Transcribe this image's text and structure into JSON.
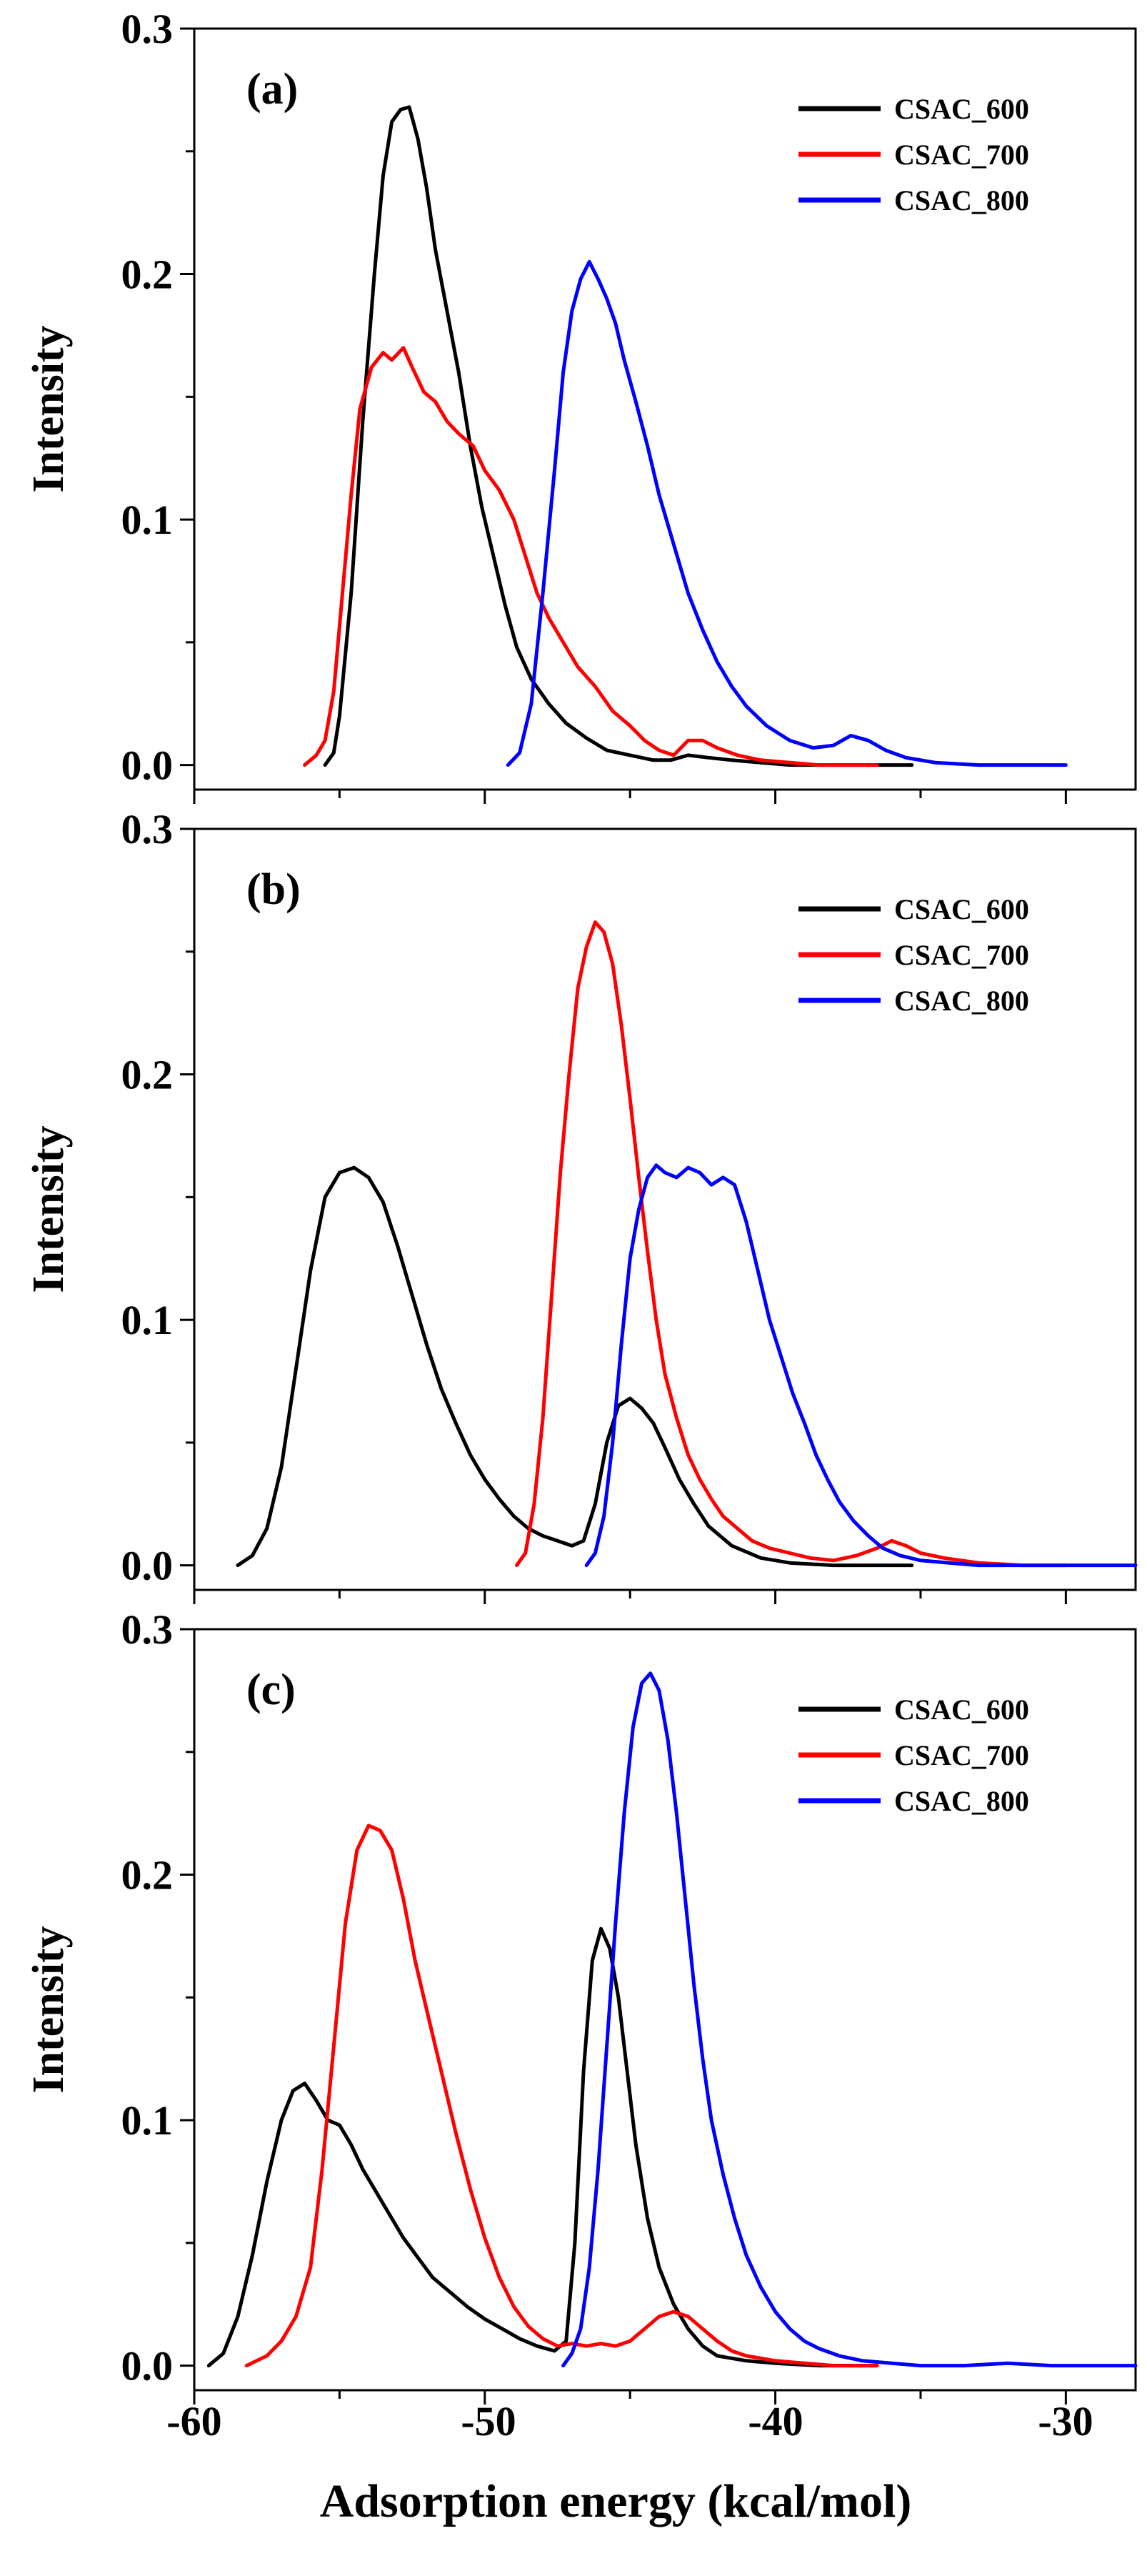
{
  "figure": {
    "xlabel": "Adsorption energy (kcal/mol)",
    "x_tick_labels": [
      "-60",
      "-50",
      "-40",
      "-30"
    ]
  },
  "chart_data": [
    {
      "type": "line",
      "panel_label": "(a)",
      "ylabel": "Intensity",
      "xlabel": "",
      "xlim": [
        -60,
        -27.6
      ],
      "ylim": [
        -0.01,
        0.3
      ],
      "y_ticks": [
        "0.0",
        "0.1",
        "0.2",
        "0.3"
      ],
      "legend": "top-right",
      "series": [
        {
          "name": "CSAC_600",
          "color": "#000000",
          "x": [
            -55.5,
            -55.2,
            -55.0,
            -54.6,
            -54.2,
            -53.8,
            -53.5,
            -53.2,
            -52.9,
            -52.6,
            -52.3,
            -52.0,
            -51.7,
            -51.3,
            -50.9,
            -50.5,
            -50.1,
            -49.7,
            -49.3,
            -48.9,
            -48.4,
            -47.8,
            -47.2,
            -46.5,
            -45.8,
            -45.0,
            -44.2,
            -43.6,
            -43.0,
            -42.3,
            -41.5,
            -40.5,
            -39.5,
            -38.0,
            -36.5,
            -35.3
          ],
          "y": [
            0.0,
            0.005,
            0.02,
            0.07,
            0.14,
            0.2,
            0.24,
            0.262,
            0.267,
            0.268,
            0.255,
            0.235,
            0.21,
            0.185,
            0.16,
            0.13,
            0.105,
            0.085,
            0.065,
            0.048,
            0.035,
            0.025,
            0.017,
            0.011,
            0.006,
            0.004,
            0.002,
            0.002,
            0.004,
            0.003,
            0.002,
            0.001,
            0.0,
            0.0,
            0.0,
            0.0
          ]
        },
        {
          "name": "CSAC_700",
          "color": "#ff0000",
          "x": [
            -56.2,
            -55.8,
            -55.5,
            -55.2,
            -54.9,
            -54.6,
            -54.3,
            -53.9,
            -53.5,
            -53.2,
            -52.8,
            -52.5,
            -52.1,
            -51.7,
            -51.3,
            -50.9,
            -50.4,
            -50.0,
            -49.5,
            -49.0,
            -48.6,
            -48.2,
            -47.8,
            -47.3,
            -46.8,
            -46.2,
            -45.6,
            -45.0,
            -44.5,
            -44.0,
            -43.5,
            -43.0,
            -42.5,
            -42.0,
            -41.3,
            -40.5,
            -39.5,
            -38.5,
            -37.0,
            -36.5
          ],
          "y": [
            0.0,
            0.004,
            0.01,
            0.03,
            0.07,
            0.11,
            0.145,
            0.162,
            0.168,
            0.165,
            0.17,
            0.162,
            0.152,
            0.148,
            0.14,
            0.135,
            0.13,
            0.12,
            0.112,
            0.1,
            0.085,
            0.07,
            0.06,
            0.05,
            0.04,
            0.032,
            0.022,
            0.016,
            0.01,
            0.006,
            0.004,
            0.01,
            0.01,
            0.007,
            0.004,
            0.002,
            0.001,
            0.0,
            0.0,
            0.0
          ]
        },
        {
          "name": "CSAC_800",
          "color": "#0000ff",
          "x": [
            -49.2,
            -48.8,
            -48.4,
            -48.0,
            -47.6,
            -47.3,
            -47.0,
            -46.7,
            -46.4,
            -46.1,
            -45.8,
            -45.5,
            -45.2,
            -44.8,
            -44.4,
            -44.0,
            -43.5,
            -43.0,
            -42.5,
            -42.0,
            -41.5,
            -41.0,
            -40.3,
            -39.5,
            -38.7,
            -38.0,
            -37.4,
            -36.8,
            -36.2,
            -35.5,
            -34.5,
            -33.0,
            -31.5,
            -30.0
          ],
          "y": [
            0.0,
            0.005,
            0.025,
            0.07,
            0.12,
            0.16,
            0.185,
            0.198,
            0.205,
            0.198,
            0.19,
            0.18,
            0.165,
            0.148,
            0.13,
            0.11,
            0.09,
            0.07,
            0.055,
            0.042,
            0.032,
            0.024,
            0.016,
            0.01,
            0.007,
            0.008,
            0.012,
            0.01,
            0.006,
            0.003,
            0.001,
            0.0,
            0.0,
            0.0
          ]
        }
      ]
    },
    {
      "type": "line",
      "panel_label": "(b)",
      "ylabel": "Intensity",
      "xlabel": "",
      "xlim": [
        -60,
        -27.6
      ],
      "ylim": [
        -0.01,
        0.3
      ],
      "y_ticks": [
        "0.0",
        "0.1",
        "0.2",
        "0.3"
      ],
      "legend": "top-right",
      "series": [
        {
          "name": "CSAC_600",
          "color": "#000000",
          "x": [
            -58.5,
            -58.0,
            -57.5,
            -57.0,
            -56.5,
            -56.0,
            -55.5,
            -55.0,
            -54.5,
            -54.0,
            -53.5,
            -53.0,
            -52.5,
            -52.0,
            -51.5,
            -51.0,
            -50.5,
            -50.0,
            -49.5,
            -49.0,
            -48.5,
            -48.0,
            -47.5,
            -47.0,
            -46.6,
            -46.2,
            -45.8,
            -45.4,
            -45.0,
            -44.6,
            -44.2,
            -43.8,
            -43.3,
            -42.8,
            -42.3,
            -41.5,
            -40.5,
            -39.5,
            -38.0,
            -36.5,
            -35.3
          ],
          "y": [
            0.0,
            0.004,
            0.015,
            0.04,
            0.08,
            0.12,
            0.15,
            0.16,
            0.162,
            0.158,
            0.148,
            0.13,
            0.11,
            0.09,
            0.072,
            0.058,
            0.045,
            0.035,
            0.027,
            0.02,
            0.015,
            0.012,
            0.01,
            0.008,
            0.01,
            0.025,
            0.05,
            0.065,
            0.068,
            0.064,
            0.058,
            0.048,
            0.035,
            0.025,
            0.016,
            0.008,
            0.003,
            0.001,
            0.0,
            0.0,
            0.0
          ]
        },
        {
          "name": "CSAC_700",
          "color": "#ff0000",
          "x": [
            -48.9,
            -48.6,
            -48.3,
            -48.0,
            -47.7,
            -47.4,
            -47.1,
            -46.8,
            -46.5,
            -46.2,
            -45.9,
            -45.6,
            -45.3,
            -45.0,
            -44.7,
            -44.4,
            -44.1,
            -43.8,
            -43.4,
            -43.0,
            -42.6,
            -42.2,
            -41.8,
            -41.3,
            -40.8,
            -40.2,
            -39.5,
            -38.8,
            -38.0,
            -37.2,
            -36.5,
            -36.0,
            -35.5,
            -35.0,
            -34.2,
            -33.0,
            -31.5,
            -30.0
          ],
          "y": [
            0.0,
            0.005,
            0.025,
            0.06,
            0.11,
            0.16,
            0.2,
            0.235,
            0.252,
            0.262,
            0.258,
            0.245,
            0.22,
            0.19,
            0.158,
            0.128,
            0.1,
            0.078,
            0.06,
            0.045,
            0.035,
            0.027,
            0.02,
            0.015,
            0.01,
            0.007,
            0.005,
            0.003,
            0.002,
            0.004,
            0.007,
            0.01,
            0.008,
            0.005,
            0.003,
            0.001,
            0.0,
            0.0
          ]
        },
        {
          "name": "CSAC_800",
          "color": "#0000ff",
          "x": [
            -46.5,
            -46.2,
            -45.9,
            -45.6,
            -45.3,
            -45.0,
            -44.7,
            -44.4,
            -44.1,
            -43.8,
            -43.4,
            -43.0,
            -42.6,
            -42.2,
            -41.8,
            -41.4,
            -41.0,
            -40.6,
            -40.2,
            -39.8,
            -39.4,
            -39.0,
            -38.6,
            -38.2,
            -37.8,
            -37.3,
            -36.8,
            -36.3,
            -35.7,
            -35.0,
            -34.0,
            -33.0,
            -32.0,
            -30.5,
            -29.0,
            -27.6
          ],
          "y": [
            0.0,
            0.005,
            0.02,
            0.05,
            0.09,
            0.125,
            0.145,
            0.158,
            0.163,
            0.16,
            0.158,
            0.162,
            0.16,
            0.155,
            0.158,
            0.155,
            0.14,
            0.12,
            0.1,
            0.085,
            0.07,
            0.058,
            0.045,
            0.035,
            0.026,
            0.018,
            0.012,
            0.007,
            0.004,
            0.002,
            0.001,
            0.0,
            0.0,
            0.0,
            0.0,
            0.0
          ]
        }
      ]
    },
    {
      "type": "line",
      "panel_label": "(c)",
      "ylabel": "Intensity",
      "xlabel": "Adsorption energy (kcal/mol)",
      "xlim": [
        -60,
        -27.6
      ],
      "ylim": [
        -0.01,
        0.3
      ],
      "y_ticks": [
        "0.0",
        "0.1",
        "0.2",
        "0.3"
      ],
      "legend": "top-right",
      "series": [
        {
          "name": "CSAC_600",
          "color": "#000000",
          "x": [
            -59.5,
            -59.0,
            -58.5,
            -58.0,
            -57.5,
            -57.0,
            -56.6,
            -56.2,
            -55.8,
            -55.4,
            -55.0,
            -54.6,
            -54.2,
            -53.8,
            -53.3,
            -52.8,
            -52.3,
            -51.8,
            -51.2,
            -50.6,
            -50.0,
            -49.4,
            -48.8,
            -48.2,
            -47.6,
            -47.2,
            -46.9,
            -46.6,
            -46.3,
            -46.0,
            -45.7,
            -45.4,
            -45.1,
            -44.8,
            -44.4,
            -44.0,
            -43.5,
            -43.0,
            -42.5,
            -42.0,
            -41.0,
            -40.0,
            -38.5,
            -37.0,
            -36.5
          ],
          "y": [
            0.0,
            0.005,
            0.02,
            0.045,
            0.075,
            0.1,
            0.112,
            0.115,
            0.108,
            0.1,
            0.098,
            0.09,
            0.08,
            0.072,
            0.062,
            0.052,
            0.044,
            0.036,
            0.03,
            0.024,
            0.019,
            0.015,
            0.011,
            0.008,
            0.006,
            0.01,
            0.05,
            0.12,
            0.165,
            0.178,
            0.17,
            0.15,
            0.12,
            0.09,
            0.06,
            0.04,
            0.025,
            0.015,
            0.008,
            0.004,
            0.002,
            0.001,
            0.0,
            0.0,
            0.0
          ]
        },
        {
          "name": "CSAC_700",
          "color": "#ff0000",
          "x": [
            -58.2,
            -57.5,
            -57.0,
            -56.5,
            -56.0,
            -55.6,
            -55.2,
            -54.8,
            -54.4,
            -54.0,
            -53.6,
            -53.2,
            -52.8,
            -52.4,
            -52.0,
            -51.5,
            -51.0,
            -50.5,
            -50.0,
            -49.5,
            -49.0,
            -48.5,
            -48.0,
            -47.5,
            -47.0,
            -46.5,
            -46.0,
            -45.5,
            -45.0,
            -44.5,
            -44.0,
            -43.5,
            -43.0,
            -42.5,
            -42.0,
            -41.5,
            -41.0,
            -40.0,
            -39.0,
            -38.0,
            -36.5
          ],
          "y": [
            0.0,
            0.004,
            0.01,
            0.02,
            0.04,
            0.08,
            0.13,
            0.18,
            0.21,
            0.22,
            0.218,
            0.21,
            0.19,
            0.165,
            0.145,
            0.12,
            0.095,
            0.072,
            0.052,
            0.036,
            0.024,
            0.016,
            0.011,
            0.008,
            0.009,
            0.008,
            0.009,
            0.008,
            0.01,
            0.015,
            0.02,
            0.022,
            0.02,
            0.015,
            0.01,
            0.006,
            0.004,
            0.002,
            0.001,
            0.0,
            0.0
          ]
        },
        {
          "name": "CSAC_800",
          "color": "#0000ff",
          "x": [
            -47.3,
            -47.0,
            -46.7,
            -46.4,
            -46.1,
            -45.8,
            -45.5,
            -45.2,
            -44.9,
            -44.6,
            -44.3,
            -44.0,
            -43.7,
            -43.4,
            -43.1,
            -42.8,
            -42.5,
            -42.2,
            -41.8,
            -41.4,
            -41.0,
            -40.5,
            -40.0,
            -39.5,
            -39.0,
            -38.5,
            -37.8,
            -37.0,
            -36.0,
            -35.0,
            -33.5,
            -32.0,
            -30.5,
            -29.0,
            -27.6
          ],
          "y": [
            0.0,
            0.005,
            0.015,
            0.04,
            0.08,
            0.13,
            0.18,
            0.225,
            0.26,
            0.278,
            0.282,
            0.275,
            0.255,
            0.225,
            0.19,
            0.155,
            0.125,
            0.1,
            0.078,
            0.06,
            0.045,
            0.032,
            0.022,
            0.015,
            0.01,
            0.007,
            0.004,
            0.002,
            0.001,
            0.0,
            0.0,
            0.001,
            0.0,
            0.0,
            0.0
          ]
        }
      ]
    }
  ]
}
